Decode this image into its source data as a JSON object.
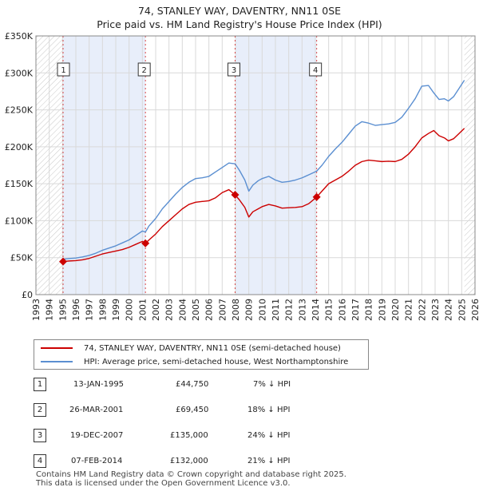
{
  "title": "74, STANLEY WAY, DAVENTRY, NN11 0SE",
  "subtitle": "Price paid vs. HM Land Registry's House Price Index (HPI)",
  "colors": {
    "red": "#cc0000",
    "blue": "#5b8fd1",
    "shade": "#e8eefa",
    "grid": "#d9d9d9"
  },
  "chart_data": {
    "type": "line",
    "title": "74, STANLEY WAY, DAVENTRY, NN11 0SE",
    "subtitle": "Price paid vs. HM Land Registry's House Price Index (HPI)",
    "xlim": [
      1993,
      2026
    ],
    "ylim": [
      0,
      350000
    ],
    "y_ticks": [
      0,
      50000,
      100000,
      150000,
      200000,
      250000,
      300000,
      350000
    ],
    "y_tick_labels": [
      "£0",
      "£50K",
      "£100K",
      "£150K",
      "£200K",
      "£250K",
      "£300K",
      "£350K"
    ],
    "x_ticks": [
      1993,
      1994,
      1995,
      1996,
      1997,
      1998,
      1999,
      2000,
      2001,
      2002,
      2003,
      2004,
      2005,
      2006,
      2007,
      2008,
      2009,
      2010,
      2011,
      2012,
      2013,
      2014,
      2015,
      2016,
      2017,
      2018,
      2019,
      2020,
      2021,
      2022,
      2023,
      2024,
      2025,
      2026
    ],
    "x_tick_labels": [
      "1993",
      "1994",
      "1995",
      "1996",
      "1997",
      "1998",
      "1999",
      "2000",
      "2001",
      "2002",
      "2003",
      "2004",
      "2005",
      "2006",
      "2007",
      "2008",
      "2009",
      "2010",
      "2011",
      "2012",
      "2013",
      "2014",
      "2015",
      "2016",
      "2017",
      "2018",
      "2019",
      "2020",
      "2021",
      "2022",
      "2023",
      "2024",
      "2025",
      "2026"
    ],
    "shaded_ranges": [
      [
        1995.04,
        2001.23
      ],
      [
        2007.97,
        2014.1
      ]
    ],
    "hatched_ranges": [
      [
        1993,
        1995.04
      ],
      [
        2025.2,
        2026
      ]
    ],
    "series": [
      {
        "name": "74, STANLEY WAY, DAVENTRY, NN11 0SE (semi-detached house)",
        "color": "#cc0000",
        "x": [
          1995.04,
          1995.5,
          1996,
          1996.5,
          1997,
          1997.5,
          1998,
          1998.5,
          1999,
          1999.5,
          2000,
          2000.5,
          2001,
          2001.23,
          2001.5,
          2002,
          2002.5,
          2003,
          2003.5,
          2004,
          2004.5,
          2005,
          2005.5,
          2006,
          2006.5,
          2007,
          2007.5,
          2007.97,
          2008.3,
          2008.7,
          2009,
          2009.3,
          2009.7,
          2010,
          2010.5,
          2011,
          2011.5,
          2012,
          2012.5,
          2013,
          2013.5,
          2014.1,
          2014.5,
          2015,
          2015.5,
          2016,
          2016.5,
          2017,
          2017.5,
          2018,
          2018.5,
          2019,
          2019.5,
          2020,
          2020.5,
          2021,
          2021.5,
          2022,
          2022.5,
          2022.9,
          2023.3,
          2023.7,
          2024,
          2024.4,
          2024.8,
          2025.2
        ],
        "values": [
          44750,
          45500,
          46000,
          47000,
          49000,
          52000,
          55000,
          57000,
          59000,
          61000,
          64000,
          68000,
          72000,
          69450,
          74000,
          82000,
          92000,
          100000,
          108000,
          116000,
          122000,
          125000,
          126000,
          127000,
          131000,
          138000,
          142000,
          135000,
          128000,
          118000,
          105000,
          112000,
          116000,
          119000,
          122000,
          120000,
          117000,
          117500,
          118000,
          119000,
          123000,
          132000,
          140000,
          150000,
          155000,
          160000,
          167000,
          175000,
          180000,
          182000,
          181000,
          180000,
          180500,
          180000,
          183000,
          190000,
          200000,
          212000,
          218000,
          222000,
          215000,
          212000,
          208000,
          211000,
          218000,
          225000
        ]
      },
      {
        "name": "HPI: Average price, semi-detached house, West Northamptonshire",
        "color": "#5b8fd1",
        "x": [
          1995.04,
          1995.5,
          1996,
          1996.5,
          1997,
          1997.5,
          1998,
          1998.5,
          1999,
          1999.5,
          2000,
          2000.5,
          2001,
          2001.23,
          2001.5,
          2002,
          2002.5,
          2003,
          2003.5,
          2004,
          2004.5,
          2005,
          2005.5,
          2006,
          2006.5,
          2007,
          2007.5,
          2007.97,
          2008.3,
          2008.7,
          2009,
          2009.3,
          2009.7,
          2010,
          2010.5,
          2011,
          2011.5,
          2012,
          2012.5,
          2013,
          2013.5,
          2014.1,
          2014.5,
          2015,
          2015.5,
          2016,
          2016.5,
          2017,
          2017.5,
          2018,
          2018.5,
          2019,
          2019.5,
          2020,
          2020.5,
          2021,
          2021.5,
          2022,
          2022.5,
          2022.9,
          2023.3,
          2023.7,
          2024,
          2024.4,
          2024.8,
          2025.2
        ],
        "values": [
          48000,
          48800,
          49500,
          51000,
          53000,
          56000,
          60000,
          63000,
          66000,
          70000,
          74000,
          80000,
          86000,
          84700,
          93000,
          103000,
          116000,
          126000,
          136000,
          145000,
          152000,
          157000,
          158000,
          160000,
          166000,
          172000,
          178000,
          177000,
          168000,
          155000,
          140000,
          148000,
          154000,
          157000,
          160000,
          155000,
          152000,
          153000,
          155000,
          158000,
          162000,
          167000,
          175000,
          187000,
          197000,
          206000,
          217000,
          228000,
          234000,
          232000,
          229000,
          230000,
          231000,
          233000,
          240000,
          252000,
          265000,
          282000,
          283000,
          273000,
          264000,
          265000,
          262000,
          268000,
          279000,
          290000
        ]
      }
    ],
    "sales": [
      {
        "label": "1",
        "x": 1995.04,
        "price": 44750
      },
      {
        "label": "2",
        "x": 2001.23,
        "price": 69450
      },
      {
        "label": "3",
        "x": 2007.97,
        "price": 135000
      },
      {
        "label": "4",
        "x": 2014.1,
        "price": 132000
      }
    ]
  },
  "legend": {
    "red_label": "74, STANLEY WAY, DAVENTRY, NN11 0SE (semi-detached house)",
    "blue_label": "HPI: Average price, semi-detached house, West Northamptonshire"
  },
  "transactions": [
    {
      "num": "1",
      "date": "13-JAN-1995",
      "price": "£44,750",
      "hpi": "7% ↓ HPI"
    },
    {
      "num": "2",
      "date": "26-MAR-2001",
      "price": "£69,450",
      "hpi": "18% ↓ HPI"
    },
    {
      "num": "3",
      "date": "19-DEC-2007",
      "price": "£135,000",
      "hpi": "24% ↓ HPI"
    },
    {
      "num": "4",
      "date": "07-FEB-2014",
      "price": "£132,000",
      "hpi": "21% ↓ HPI"
    }
  ],
  "footer": {
    "line1": "Contains HM Land Registry data © Crown copyright and database right 2025.",
    "line2": "This data is licensed under the Open Government Licence v3.0."
  }
}
